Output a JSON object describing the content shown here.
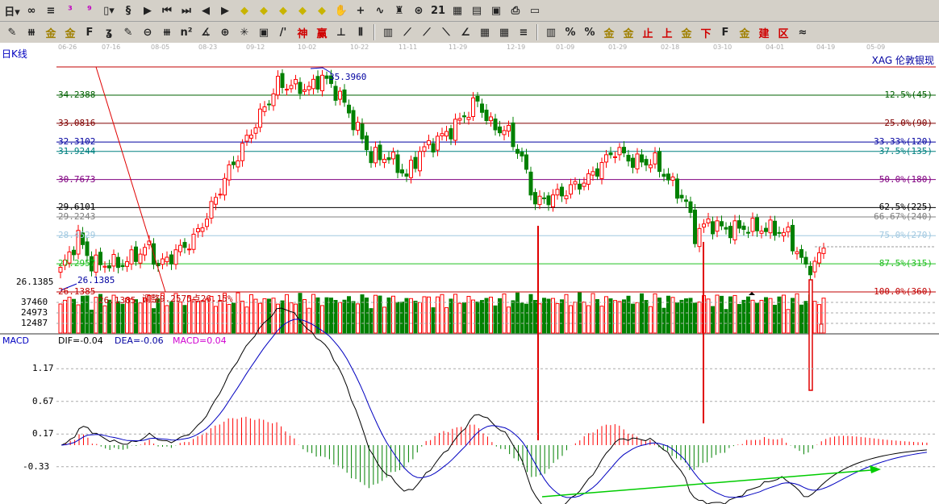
{
  "toolbar": {
    "row1": [
      "period-menu:日▾",
      "auto-icon:∞",
      "notes-icon:≡",
      "chart3-icon:³",
      "chart9-icon:⁹",
      "candle-type-icon:▯▾",
      "tick-icon:§",
      "flag-icon:▶",
      "first-icon:⏮",
      "last-icon:⏭",
      "left-icon:◀",
      "right-icon:▶",
      "zoom-left-icon:◆",
      "zoom-right-icon:◆",
      "zoom-in-icon:◆",
      "zoom-out-icon:◆",
      "zoom-fit-icon:◆",
      "hand-icon:✋",
      "crosshair-icon:+",
      "draw-icon:∿",
      "shirt-icon:♜",
      "globe-icon:⊛",
      "calendar-icon:21",
      "calc-icon:▦",
      "doc-icon:▤",
      "save-icon:▣",
      "print-icon:⎙",
      "window-icon:▭"
    ],
    "row2": [
      "pen-icon:✎",
      "parallel-icon:⧻",
      "gold1-icon:金",
      "gold2-icon:金",
      "fib-icon:F",
      "spiral-icon:ʓ",
      "pen2-icon:✎",
      "circle-icon:⊖",
      "lines-icon:⧻",
      "n2-icon:n²",
      "angle-icon:∡",
      "target-icon:⊕",
      "star-icon:✳",
      "square-icon:▣",
      "slash-icon:/'",
      "shen-icon:神",
      "ying-icon:赢",
      "gap-icon:⊥",
      "wave-icon:⫴",
      "sep:",
      "grid-icon:▥",
      "fan1-icon:⟋",
      "fan2-icon:⟋",
      "fan3-icon:⟍",
      "arc-icon:∠",
      "grid2-icon:▦",
      "grid3-icon:▦",
      "lines2-icon:≡",
      "sep:",
      "table-icon:▥",
      "pct-icon:%",
      "percent-icon:%",
      "gold3-icon:金",
      "gold4-icon:金",
      "stop-icon:止",
      "up-icon:上",
      "gold5-icon:金",
      "down-icon:下",
      "flag2-icon:F",
      "gold6-icon:金",
      "jia-icon:建",
      "fen-icon:区",
      "cut-icon:≈"
    ]
  },
  "dates": [
    "06-26",
    "07-16",
    "08-05",
    "08-23",
    "09-12",
    "10-02",
    "10-22",
    "11-11",
    "11-29",
    "12-19",
    "01-09",
    "01-29",
    "02-18",
    "03-10",
    "04-01",
    "04-19",
    "05-09"
  ],
  "title": "日K线",
  "instrument": "XAG  伦敦银现",
  "annotations": {
    "high": "35.3960",
    "low_blue": "26.1385",
    "low_red": "26.1385",
    "low_axis": "26.1385",
    "retrace": "调整9.2575点26.15%"
  },
  "fib_levels": [
    {
      "pct": "12.5%(45)",
      "price": "34.2388",
      "color": "#006000"
    },
    {
      "pct": "25.0%(90)",
      "price": "33.0816",
      "color": "#800000"
    },
    {
      "pct": "33.33%(120)",
      "price": "32.3102",
      "color": "#0000a0"
    },
    {
      "pct": "37.5%(135)",
      "price": "31.9244",
      "color": "#008080"
    },
    {
      "pct": "50.0%(180)",
      "price": "30.7673",
      "color": "#800080"
    },
    {
      "pct": "62.5%(225)",
      "price": "29.6101",
      "color": "#000000"
    },
    {
      "pct": "66.67%(240)",
      "price": "29.2243",
      "color": "#808080"
    },
    {
      "pct": "75.0%(270)",
      "price": "28.4529",
      "color": "#a0c8e0"
    },
    {
      "pct": "87.5%(315)",
      "price": "27.2957",
      "color": "#20c020"
    },
    {
      "pct": "100.0%(360)",
      "price": "26.1385",
      "color": "#c00000"
    }
  ],
  "volume_ticks": [
    "37460",
    "24973",
    "12487"
  ],
  "macd": {
    "label": "MACD",
    "dif": "DIF=-0.04",
    "dea": "DEA=-0.06",
    "macd": "MACD=0.04",
    "ticks": [
      "1.17",
      "0.67",
      "0.17",
      "-0.33"
    ]
  },
  "colors": {
    "up": "#ff0000",
    "down": "#008000",
    "dif": "#000000",
    "dea": "#0000c0"
  },
  "chart_data": {
    "type": "candlestick",
    "price_range": [
      26.1385,
      35.396
    ],
    "close_path": [
      [
        0,
        27
      ],
      [
        4,
        28.4
      ],
      [
        7,
        27.3
      ],
      [
        14,
        27.3
      ],
      [
        20,
        28
      ],
      [
        22,
        27.2
      ],
      [
        30,
        28.3
      ],
      [
        34,
        29.6
      ],
      [
        37,
        30.8
      ],
      [
        41,
        32.1
      ],
      [
        45,
        33.4
      ],
      [
        49,
        34.7
      ],
      [
        56,
        34.5
      ],
      [
        59,
        35
      ],
      [
        63,
        34.2
      ],
      [
        67,
        32.8
      ],
      [
        70,
        31.7
      ],
      [
        74,
        31.7
      ],
      [
        78,
        30.9
      ],
      [
        81,
        31.9
      ],
      [
        88,
        32.8
      ],
      [
        94,
        34
      ],
      [
        97,
        33
      ],
      [
        101,
        32.7
      ],
      [
        104,
        31.6
      ],
      [
        107,
        29.8
      ],
      [
        113,
        30.2
      ],
      [
        119,
        30.8
      ],
      [
        125,
        32
      ],
      [
        129,
        31.5
      ],
      [
        134,
        31.5
      ],
      [
        141,
        29.8
      ],
      [
        143,
        28.5
      ],
      [
        146,
        29
      ],
      [
        150,
        28.7
      ],
      [
        155,
        28.8
      ],
      [
        161,
        28.7
      ],
      [
        164,
        28.5
      ],
      [
        168,
        27.1
      ],
      [
        170,
        27.3
      ],
      [
        172,
        27.9
      ]
    ]
  }
}
